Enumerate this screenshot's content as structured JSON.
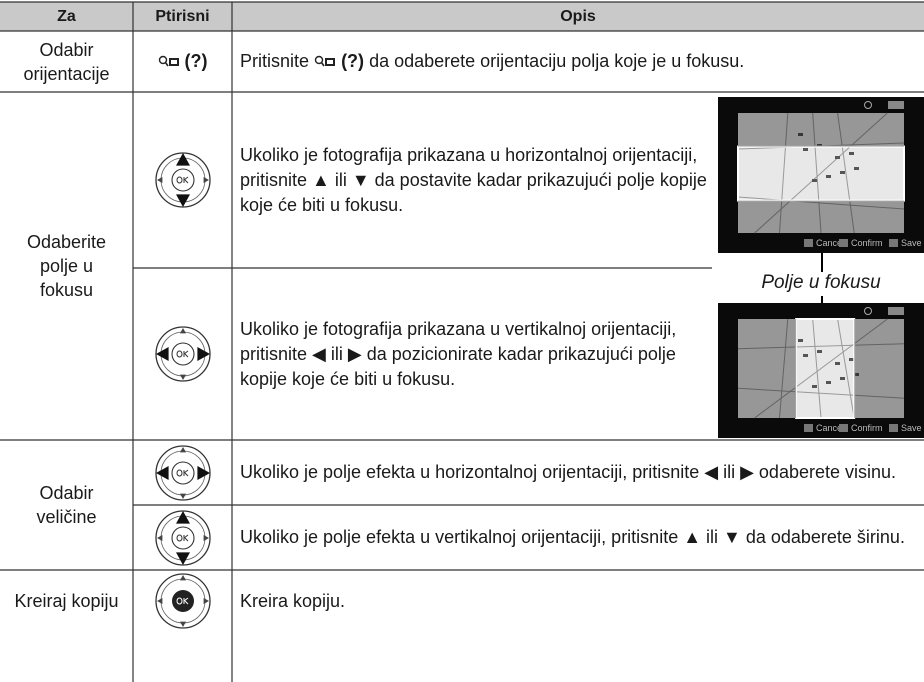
{
  "table": {
    "header": [
      "Za",
      "Ptirisni",
      "Opis"
    ],
    "rows": [
      {
        "za": "Odabir orijentacije",
        "button": "(?)",
        "opis": [
          "Pritisnite",
          "(?)",
          "da odaberete orijentaciju polja koje je u fokusu."
        ]
      },
      {
        "za": "Odaberite polje u fokusu",
        "sub": [
          "Ukoliko je fotografija prikazana u horizontalnoj orijentaciji, pritisnite ▲ ili ▼ da postavite kadar prikazujući polje kopije koje će biti u fokusu.",
          "Ukoliko je fotografija prikazana u vertikalnoj orijentaciji, pritisnite ◀ ili ▶ da pozicionirate kadar prikazujući polje kopije koje će biti u fokusu."
        ]
      },
      {
        "za": "Odabir veličine",
        "sub": [
          "Ukoliko je polje efekta u horizontalnoj orijentaciji, pritisnite ◀ ili ▶ odaberete visinu.",
          "Ukoliko je polje efekta u vertikalnoj orijentaciji, pritisnite ▲ ili ▼ da odaberete širinu."
        ]
      },
      {
        "za": "Kreiraj kopiju",
        "opis": "Kreira kopiju."
      }
    ],
    "caption": "Polje u fokusu",
    "screen_labels": [
      "Cancel",
      "Confirm",
      "Save"
    ]
  }
}
